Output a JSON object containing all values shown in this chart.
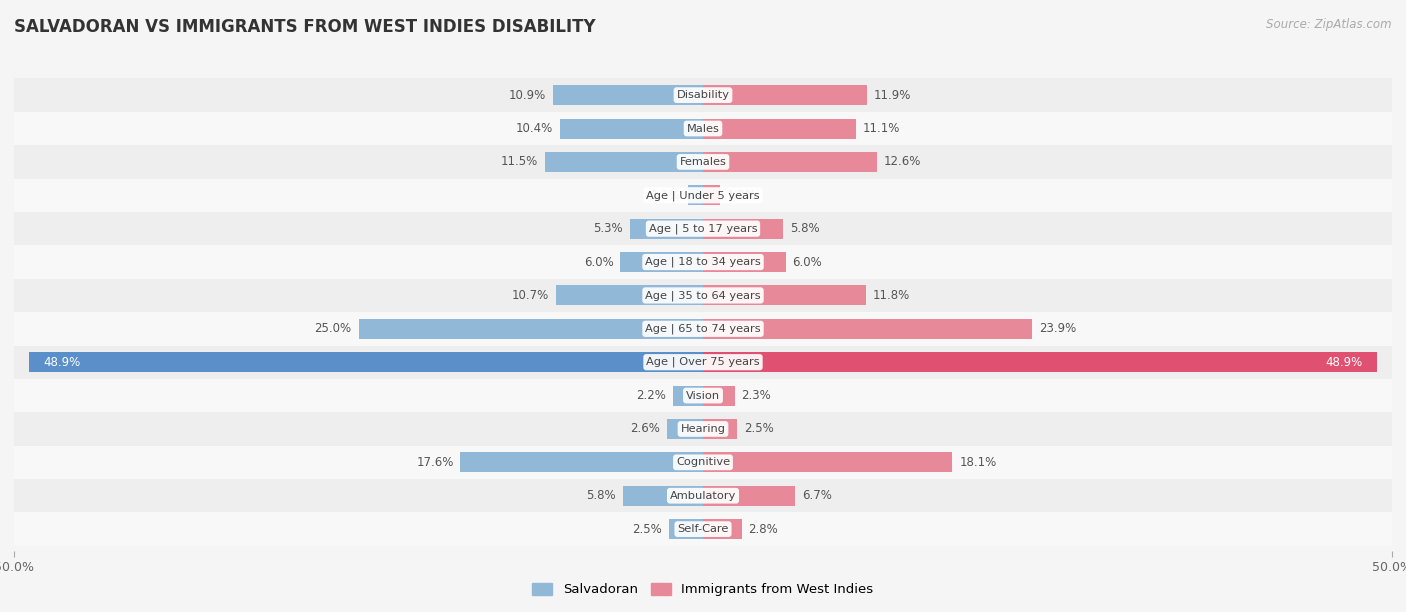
{
  "title": "SALVADORAN VS IMMIGRANTS FROM WEST INDIES DISABILITY",
  "source": "Source: ZipAtlas.com",
  "categories": [
    "Disability",
    "Males",
    "Females",
    "Age | Under 5 years",
    "Age | 5 to 17 years",
    "Age | 18 to 34 years",
    "Age | 35 to 64 years",
    "Age | 65 to 74 years",
    "Age | Over 75 years",
    "Vision",
    "Hearing",
    "Cognitive",
    "Ambulatory",
    "Self-Care"
  ],
  "salvadoran": [
    10.9,
    10.4,
    11.5,
    1.1,
    5.3,
    6.0,
    10.7,
    25.0,
    48.9,
    2.2,
    2.6,
    17.6,
    5.8,
    2.5
  ],
  "west_indies": [
    11.9,
    11.1,
    12.6,
    1.2,
    5.8,
    6.0,
    11.8,
    23.9,
    48.9,
    2.3,
    2.5,
    18.1,
    6.7,
    2.8
  ],
  "salvadoran_color": "#92b8d8",
  "west_indies_color": "#e8899a",
  "row_bg_even": "#eeeeee",
  "row_bg_odd": "#f8f8f8",
  "over75_sal_color": "#5b8fc9",
  "over75_wi_color": "#e05070",
  "max_val": 50.0,
  "bar_height": 0.6,
  "legend_salvadoran": "Salvadoran",
  "legend_west_indies": "Immigrants from West Indies"
}
